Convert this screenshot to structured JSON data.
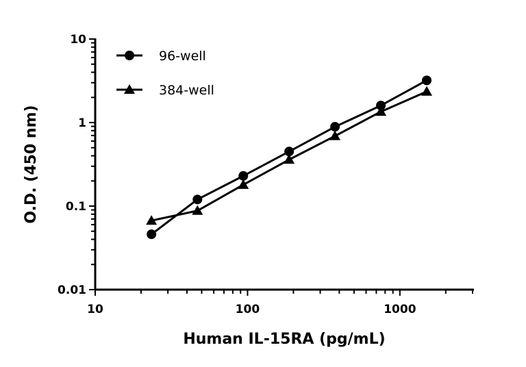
{
  "chart_data": {
    "type": "line",
    "title": "",
    "xlabel": "Human IL-15RA (pg/mL)",
    "ylabel": "O.D. (450 nm)",
    "xscale": "log",
    "yscale": "log",
    "xlim": [
      10,
      3000
    ],
    "ylim": [
      0.01,
      10
    ],
    "grid": false,
    "legend_position": "top-left",
    "x_tick_labels": [
      "10",
      "100",
      "1000"
    ],
    "y_tick_labels": [
      "0.01",
      "0.1",
      "1",
      "10"
    ],
    "x": [
      23.4,
      46.9,
      93.8,
      187.5,
      375,
      750,
      1500
    ],
    "series": [
      {
        "name": "96-well",
        "marker": "circle",
        "color": "#000000",
        "values": [
          0.046,
          0.12,
          0.23,
          0.45,
          0.89,
          1.6,
          3.2
        ]
      },
      {
        "name": "384-well",
        "marker": "triangle",
        "color": "#000000",
        "values": [
          0.067,
          0.088,
          0.18,
          0.36,
          0.69,
          1.35,
          2.35
        ]
      }
    ]
  }
}
